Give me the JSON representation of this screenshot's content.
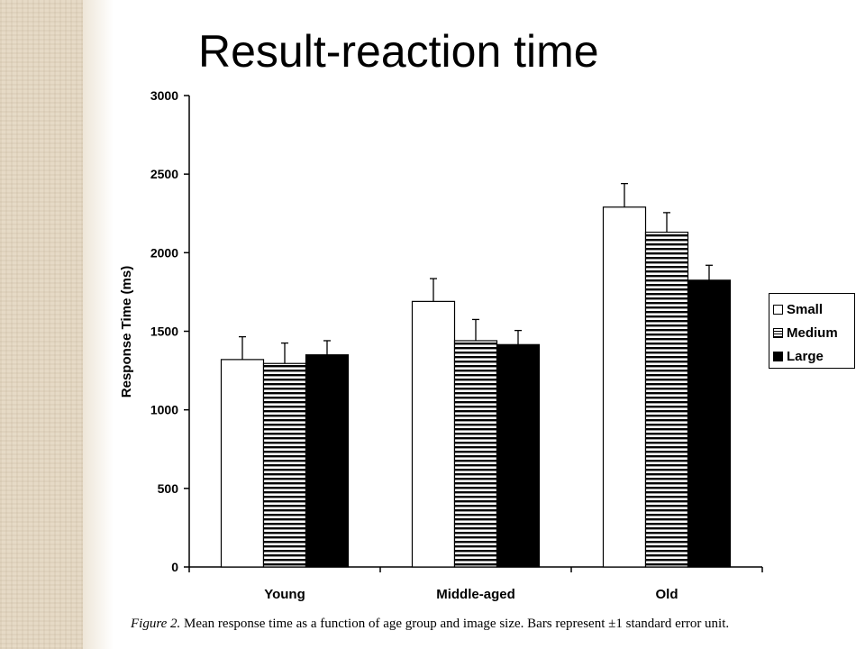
{
  "slide": {
    "title": "Result-reaction time",
    "caption_label": "Figure 2.",
    "caption_text": "Mean response time as a function of age group and image size. Bars represent ±1 standard error unit."
  },
  "chart_data": {
    "type": "bar",
    "ylabel": "Response Time (ms)",
    "ylim": [
      0,
      3000
    ],
    "yticks": [
      "0",
      "500",
      "1000",
      "1500",
      "2000",
      "2500",
      "3000"
    ],
    "categories": [
      "Young",
      "Middle-aged",
      "Old"
    ],
    "series": [
      {
        "name": "Small",
        "values": [
          1320,
          1690,
          2290
        ],
        "error": [
          145,
          145,
          150
        ],
        "fill": "white"
      },
      {
        "name": "Medium",
        "values": [
          1295,
          1440,
          2130
        ],
        "error": [
          130,
          135,
          125
        ],
        "fill": "horizontal-stripes"
      },
      {
        "name": "Large",
        "values": [
          1350,
          1415,
          1825
        ],
        "error": [
          90,
          90,
          95
        ],
        "fill": "black"
      }
    ],
    "legend_position": "right",
    "grid": false,
    "colors": {
      "axis": "#000000",
      "dark": "#000000",
      "light": "#ffffff"
    }
  }
}
